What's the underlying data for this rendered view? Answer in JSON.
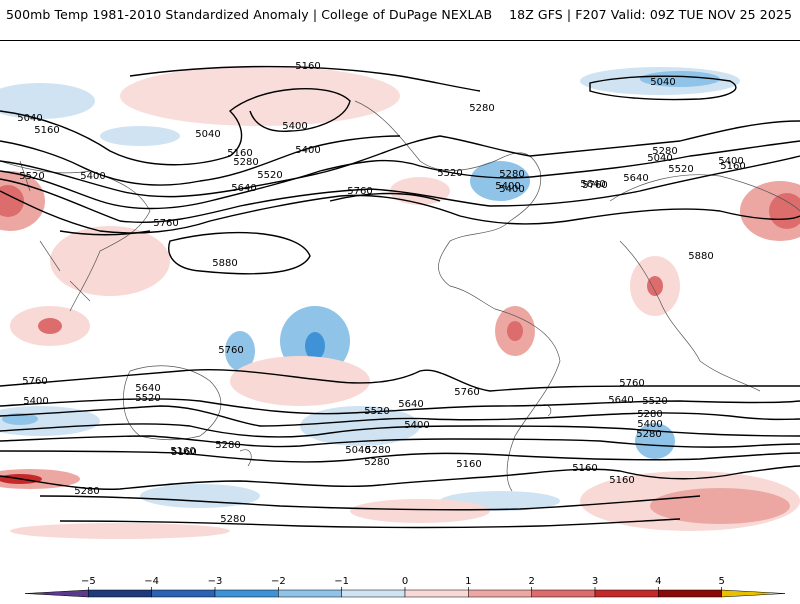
{
  "header": {
    "title": "500mb Temp 1981-2010 Standardized Anomaly | College of DuPage NEXLAB",
    "run_info": "18Z GFS | F207 Valid: 09Z TUE NOV 25 2025"
  },
  "contour_labels": [
    "5160",
    "5040",
    "5280",
    "5040",
    "5160",
    "5400",
    "5040",
    "5160",
    "5280",
    "5400",
    "5520",
    "5400",
    "5400",
    "5520",
    "5640",
    "5760",
    "5760",
    "5880",
    "5520",
    "5280",
    "5640",
    "5400",
    "5160",
    "5040",
    "5280",
    "5520",
    "5640",
    "5760",
    "5400",
    "5880",
    "5760",
    "5760",
    "5640",
    "5520",
    "5400",
    "5280",
    "5160",
    "5280",
    "5280",
    "5520",
    "5280",
    "5400",
    "5640",
    "5760",
    "5040",
    "5160",
    "5160",
    "5160",
    "5160",
    "5280",
    "5760",
    "5640",
    "5520",
    "5400",
    "5280",
    "5280"
  ],
  "colorbar": {
    "ticks": [
      "−5",
      "−4",
      "−3",
      "−2",
      "−1",
      "0",
      "1",
      "2",
      "3",
      "4",
      "5"
    ],
    "colors": [
      "#5b3a8e",
      "#1f3a7a",
      "#2b63b3",
      "#3f92d6",
      "#8fc3e8",
      "#cfe3f3",
      "#f8d9d6",
      "#eda7a3",
      "#dd6d6d",
      "#c42a2a",
      "#8a0a0a",
      "#e8c000"
    ]
  }
}
